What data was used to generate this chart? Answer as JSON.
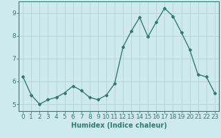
{
  "x": [
    0,
    1,
    2,
    3,
    4,
    5,
    6,
    7,
    8,
    9,
    10,
    11,
    12,
    13,
    14,
    15,
    16,
    17,
    18,
    19,
    20,
    21,
    22,
    23
  ],
  "y": [
    6.2,
    5.4,
    5.0,
    5.2,
    5.3,
    5.5,
    5.8,
    5.6,
    5.3,
    5.2,
    5.4,
    5.9,
    7.5,
    8.2,
    8.8,
    7.95,
    8.6,
    9.2,
    8.85,
    8.15,
    7.4,
    6.3,
    6.2,
    5.5
  ],
  "line_color": "#2e7d6e",
  "marker": "D",
  "marker_size": 2.0,
  "line_width": 1.0,
  "xlabel": "Humidex (Indice chaleur)",
  "xlim": [
    -0.5,
    23.5
  ],
  "ylim": [
    4.7,
    9.5
  ],
  "yticks": [
    5,
    6,
    7,
    8,
    9
  ],
  "xticks": [
    0,
    1,
    2,
    3,
    4,
    5,
    6,
    7,
    8,
    9,
    10,
    11,
    12,
    13,
    14,
    15,
    16,
    17,
    18,
    19,
    20,
    21,
    22,
    23
  ],
  "bg_color": "#ceeaee",
  "grid_color": "#b8d4d8",
  "axis_color": "#2e7d6e",
  "tick_color": "#2e7d6e",
  "label_color": "#2e7d6e",
  "xlabel_fontsize": 7,
  "tick_fontsize": 6.5
}
